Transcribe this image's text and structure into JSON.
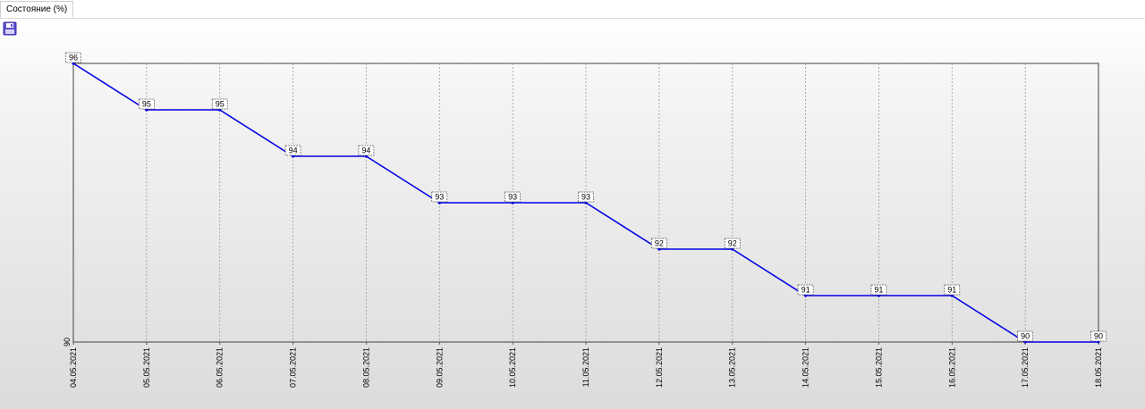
{
  "tab": {
    "label": "Состояние (%)"
  },
  "toolbar": {
    "save_icon": "save-icon"
  },
  "colors": {
    "line": "#0000e6",
    "grid": "#9a9a9a",
    "frame": "#404040"
  },
  "chart_data": {
    "type": "line",
    "title": "",
    "xlabel": "",
    "ylabel": "",
    "ylim": [
      90,
      96
    ],
    "y_ticks": [
      "90"
    ],
    "grid": "vertical-dashed",
    "categories": [
      "04.05.2021",
      "05.05.2021",
      "06.05.2021",
      "07.05.2021",
      "08.05.2021",
      "09.05.2021",
      "10.05.2021",
      "11.05.2021",
      "12.05.2021",
      "13.05.2021",
      "14.05.2021",
      "15.05.2021",
      "16.05.2021",
      "17.05.2021",
      "18.05.2021"
    ],
    "series": [
      {
        "values": [
          96,
          95,
          95,
          94,
          94,
          93,
          93,
          93,
          92,
          92,
          91,
          91,
          91,
          90,
          90
        ]
      }
    ]
  }
}
